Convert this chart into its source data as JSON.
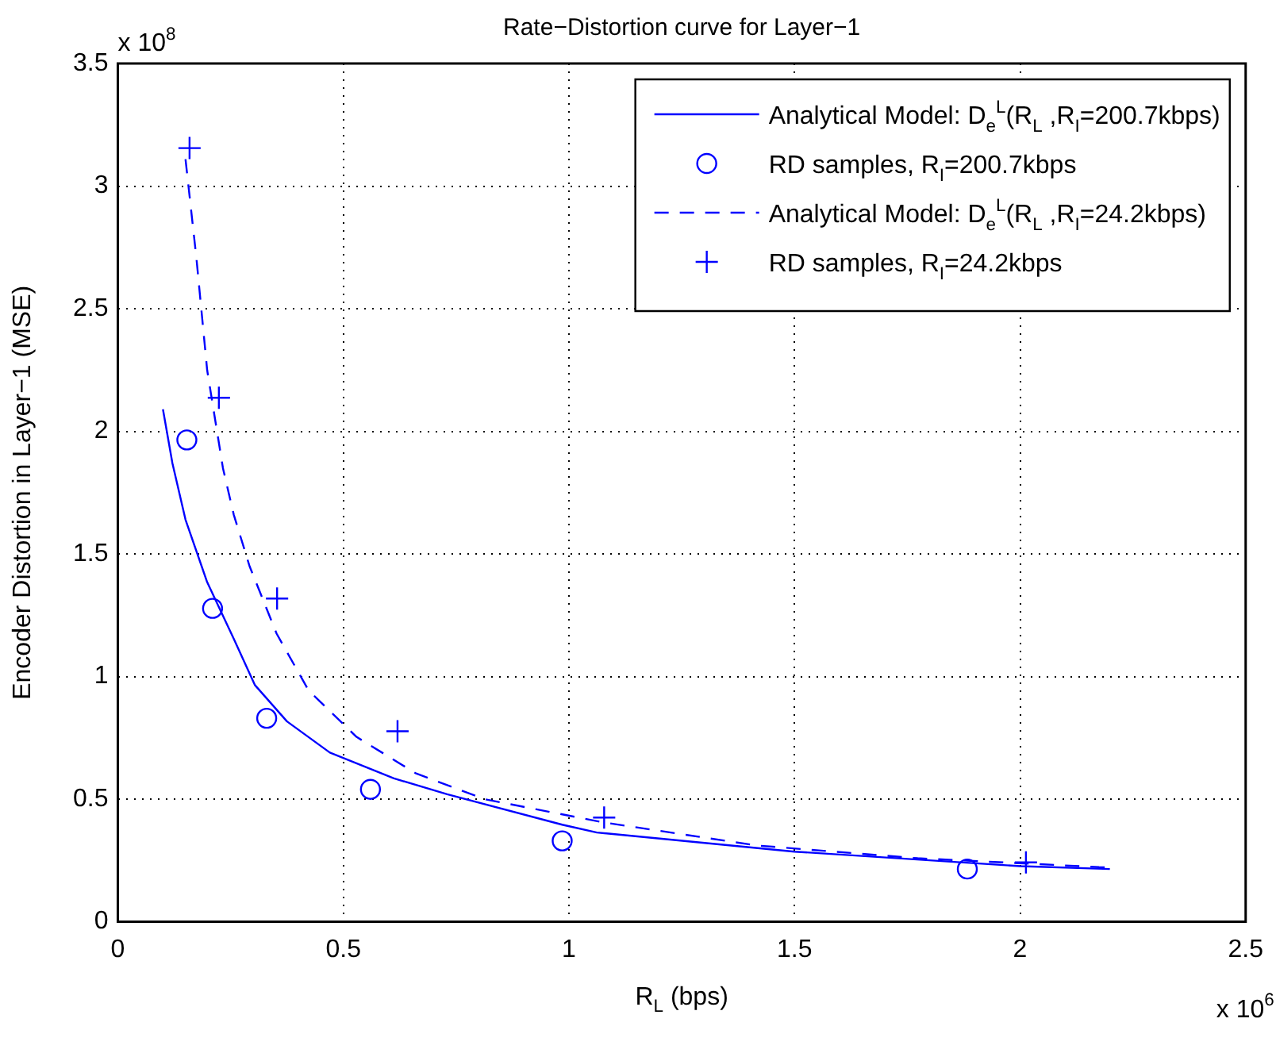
{
  "chart_data": {
    "type": "line",
    "title": "Rate−Distortion curve for Layer−1",
    "xlabel": "R$_{L}$ (bps)",
    "ylabel": "Encoder Distortion in Layer−1 (MSE)",
    "annotations": [
      "x 10$^{8}$",
      "x 10$^{6}$"
    ],
    "xlim": [
      0,
      2.5
    ],
    "ylim": [
      0,
      3.5
    ],
    "xticks": [
      0,
      0.5,
      1,
      1.5,
      2,
      2.5
    ],
    "yticks": [
      0,
      0.5,
      1,
      1.5,
      2,
      2.5,
      3,
      3.5
    ],
    "grid": true,
    "legend": "top right",
    "series": [
      {
        "name": "Analytical Model: D$_{e}$$^{L}$(R$_{L}$ ,R$_{I}$=200.7kbps)",
        "color": "#0000ff",
        "marker": "none",
        "line_style": "solid",
        "x": [
          0.1,
          0.121,
          0.15,
          0.198,
          0.257,
          0.304,
          0.375,
          0.47,
          0.612,
          0.73,
          0.985,
          1.062,
          1.5,
          2.0,
          2.199
        ],
        "values": [
          2.09,
          1.87,
          1.64,
          1.385,
          1.154,
          0.965,
          0.817,
          0.69,
          0.585,
          0.52,
          0.396,
          0.364,
          0.286,
          0.227,
          0.215
        ]
      },
      {
        "type": "scatter",
        "name": "RD samples, R$_{I}$=200.7kbps",
        "color": "#0000ff",
        "marker": "circle",
        "x": [
          0.153,
          0.21,
          0.33,
          0.56,
          0.985,
          1.883
        ],
        "values": [
          1.965,
          1.278,
          0.83,
          0.54,
          0.33,
          0.215
        ]
      },
      {
        "name": "Analytical Model: D$_{e}$$^{L}$(R$_{L}$ ,R$_{I}$=24.2kbps)",
        "color": "#0000ff",
        "marker": "none",
        "line_style": "dashed",
        "x": [
          0.15,
          0.174,
          0.198,
          0.233,
          0.257,
          0.292,
          0.352,
          0.423,
          0.529,
          0.66,
          0.813,
          1.074,
          1.417,
          1.773,
          2.175,
          2.2
        ],
        "values": [
          3.11,
          2.71,
          2.25,
          1.85,
          1.66,
          1.45,
          1.175,
          0.943,
          0.754,
          0.606,
          0.5,
          0.406,
          0.311,
          0.259,
          0.223,
          0.222
        ]
      },
      {
        "type": "scatter",
        "name": "RD samples, R$_{I}$=24.2kbps",
        "color": "#0000ff",
        "marker": "cross",
        "x": [
          0.159,
          0.224,
          0.353,
          0.62,
          1.078,
          2.013
        ],
        "values": [
          3.155,
          2.137,
          1.318,
          0.777,
          0.425,
          0.242
        ]
      }
    ]
  }
}
